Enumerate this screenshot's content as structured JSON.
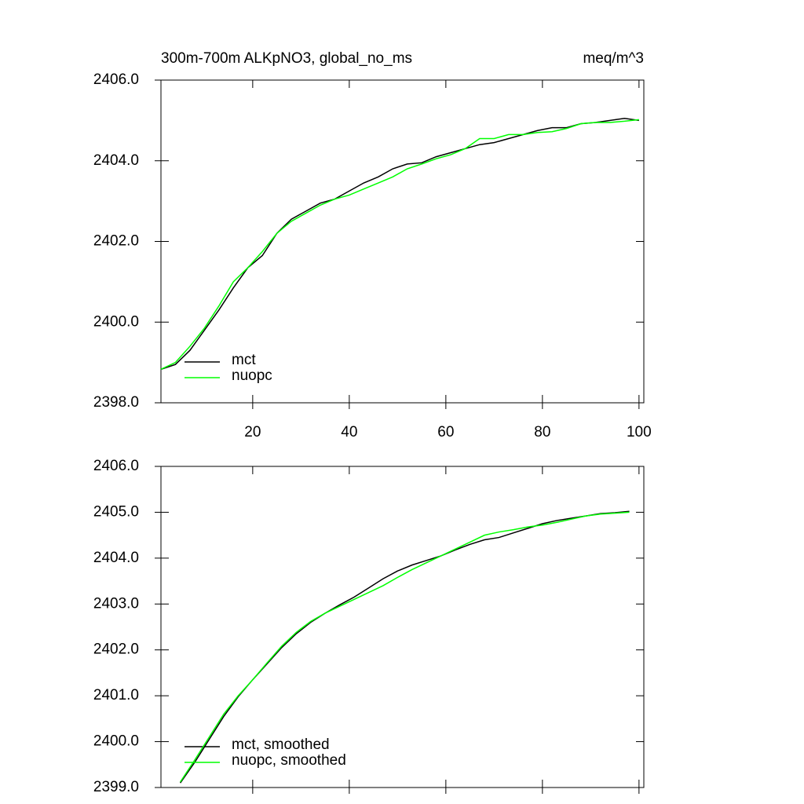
{
  "chart_data": [
    {
      "type": "line",
      "title": "300m-700m ALKpNO3, global_no_ms",
      "units": "meq/m^3",
      "x": [
        1,
        4,
        7,
        10,
        13,
        16,
        19,
        22,
        25,
        28,
        31,
        34,
        37,
        40,
        43,
        46,
        49,
        52,
        55,
        58,
        61,
        64,
        67,
        70,
        73,
        76,
        79,
        82,
        85,
        88,
        91,
        94,
        97,
        100
      ],
      "series": [
        {
          "name": "mct",
          "color": "#000000",
          "values": [
            2398.83,
            2398.95,
            2399.3,
            2399.8,
            2400.3,
            2400.85,
            2401.35,
            2401.65,
            2402.2,
            2402.55,
            2402.75,
            2402.95,
            2403.05,
            2403.25,
            2403.45,
            2403.6,
            2403.8,
            2403.92,
            2403.95,
            2404.1,
            2404.2,
            2404.3,
            2404.4,
            2404.45,
            2404.55,
            2404.65,
            2404.75,
            2404.82,
            2404.82,
            2404.92,
            2404.95,
            2405.0,
            2405.05,
            2405.0
          ]
        },
        {
          "name": "nuopc",
          "color": "#00ff00",
          "values": [
            2398.83,
            2399.0,
            2399.4,
            2399.85,
            2400.4,
            2401.0,
            2401.35,
            2401.75,
            2402.2,
            2402.5,
            2402.7,
            2402.9,
            2403.05,
            2403.15,
            2403.3,
            2403.45,
            2403.6,
            2403.8,
            2403.92,
            2404.05,
            2404.15,
            2404.3,
            2404.55,
            2404.55,
            2404.65,
            2404.65,
            2404.7,
            2404.72,
            2404.8,
            2404.92,
            2404.95,
            2404.95,
            2404.98,
            2405.02
          ]
        }
      ],
      "xlim": [
        1,
        101
      ],
      "xticks": [
        20,
        40,
        60,
        80,
        100
      ],
      "xtick_labels": true,
      "ylim": [
        2398,
        2406
      ],
      "yticks": [
        {
          "value": 2398,
          "label": "2398.0"
        },
        {
          "value": 2400,
          "label": "2400.0"
        },
        {
          "value": 2402,
          "label": "2402.0"
        },
        {
          "value": 2404,
          "label": "2404.0"
        },
        {
          "value": 2406,
          "label": "2406.0"
        }
      ],
      "legend": "lower left"
    },
    {
      "type": "line",
      "x": [
        5,
        8,
        11,
        14,
        17,
        20,
        23,
        26,
        29,
        32,
        35,
        38,
        41,
        44,
        47,
        50,
        53,
        56,
        59,
        62,
        65,
        68,
        71,
        74,
        77,
        80,
        83,
        86,
        89,
        92,
        95,
        98
      ],
      "series": [
        {
          "name": "mct, smoothed",
          "color": "#000000",
          "values": [
            2399.1,
            2399.55,
            2400.05,
            2400.55,
            2400.98,
            2401.35,
            2401.7,
            2402.05,
            2402.35,
            2402.6,
            2402.8,
            2402.98,
            2403.15,
            2403.35,
            2403.55,
            2403.72,
            2403.85,
            2403.95,
            2404.05,
            2404.18,
            2404.3,
            2404.4,
            2404.45,
            2404.55,
            2404.65,
            2404.75,
            2404.82,
            2404.87,
            2404.92,
            2404.97,
            2404.99,
            2405.02
          ]
        },
        {
          "name": "nuopc, smoothed",
          "color": "#00ff00",
          "values": [
            2399.12,
            2399.6,
            2400.1,
            2400.6,
            2401.0,
            2401.35,
            2401.72,
            2402.08,
            2402.38,
            2402.62,
            2402.8,
            2402.95,
            2403.1,
            2403.25,
            2403.4,
            2403.58,
            2403.75,
            2403.9,
            2404.05,
            2404.2,
            2404.35,
            2404.5,
            2404.57,
            2404.62,
            2404.68,
            2404.72,
            2404.78,
            2404.85,
            2404.92,
            2404.96,
            2404.98,
            2405.0
          ]
        }
      ],
      "xlim": [
        1,
        101
      ],
      "xticks": [
        20,
        40,
        60,
        80,
        100
      ],
      "xtick_labels": false,
      "ylim": [
        2399,
        2406
      ],
      "yticks": [
        {
          "value": 2399,
          "label": "2399.0"
        },
        {
          "value": 2400,
          "label": "2400.0"
        },
        {
          "value": 2401,
          "label": "2401.0"
        },
        {
          "value": 2402,
          "label": "2402.0"
        },
        {
          "value": 2403,
          "label": "2403.0"
        },
        {
          "value": 2404,
          "label": "2404.0"
        },
        {
          "value": 2405,
          "label": "2405.0"
        },
        {
          "value": 2406,
          "label": "2406.0"
        }
      ],
      "legend": "lower left"
    }
  ]
}
